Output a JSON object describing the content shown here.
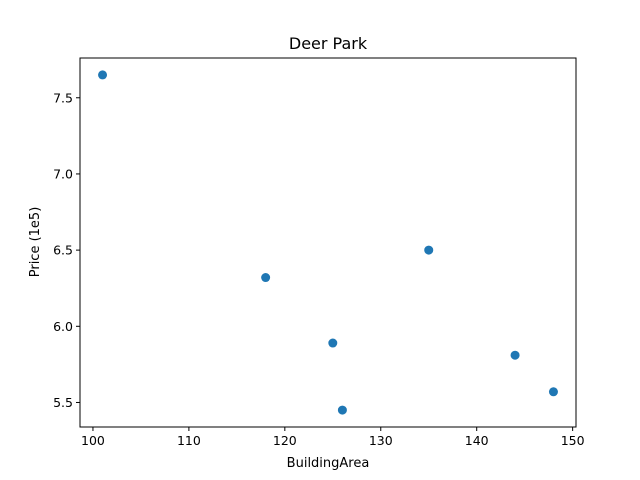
{
  "chart_data": {
    "type": "scatter",
    "title": "Deer Park",
    "xlabel": "BuildingArea",
    "ylabel": "Price (1e5)",
    "xlim": [
      98.65,
      150.35
    ],
    "ylim": [
      5.339,
      7.761
    ],
    "xticks": [
      100,
      110,
      120,
      130,
      140,
      150
    ],
    "xtick_labels": [
      "100",
      "110",
      "120",
      "130",
      "140",
      "150"
    ],
    "yticks": [
      5.5,
      6.0,
      6.5,
      7.0,
      7.5
    ],
    "ytick_labels": [
      "5.5",
      "6.0",
      "6.5",
      "7.0",
      "7.5"
    ],
    "grid": false,
    "series": [
      {
        "color": "#1f77b4",
        "points": [
          {
            "x": 101,
            "y": 7.65
          },
          {
            "x": 118,
            "y": 6.32
          },
          {
            "x": 125,
            "y": 5.89
          },
          {
            "x": 126,
            "y": 5.45
          },
          {
            "x": 135,
            "y": 6.5
          },
          {
            "x": 144,
            "y": 5.81
          },
          {
            "x": 148,
            "y": 5.57
          }
        ]
      }
    ]
  }
}
